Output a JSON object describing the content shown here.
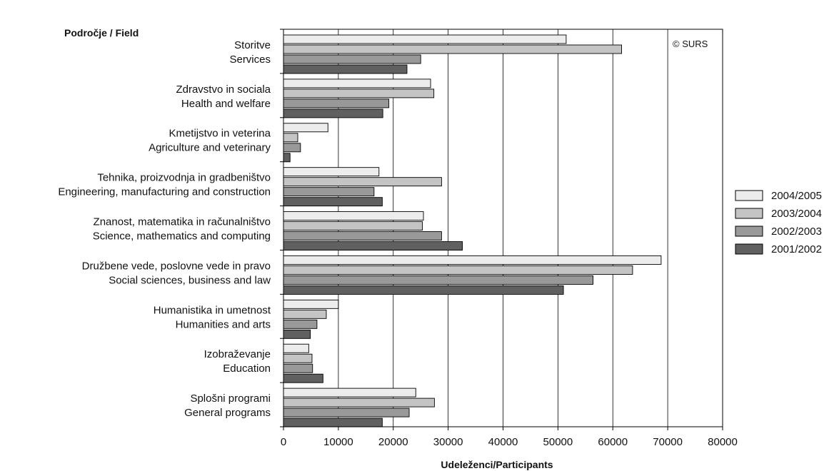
{
  "chart_data": {
    "type": "bar",
    "orientation": "horizontal",
    "y_axis_title": "Področje / Field",
    "x_axis_title": "Udeleženci/Participants",
    "copyright": "© SURS",
    "xlim": [
      0,
      80000
    ],
    "x_ticks": [
      0,
      10000,
      20000,
      30000,
      40000,
      50000,
      60000,
      70000,
      80000
    ],
    "grid": "vertical",
    "legend_position": "right",
    "categories": [
      [
        "Storitve",
        "Services"
      ],
      [
        "Zdravstvo in sociala",
        "Health and welfare"
      ],
      [
        "Kmetijstvo in veterina",
        "Agriculture and veterinary"
      ],
      [
        "Tehnika, proizvodnja in gradbeništvo",
        "Engineering, manufacturing and construction"
      ],
      [
        "Znanost, matematika in računalništvo",
        "Science, mathematics and computing"
      ],
      [
        "Družbene vede, poslovne vede in pravo",
        "Social sciences, business and law"
      ],
      [
        "Humanistika in umetnost",
        "Humanities and arts"
      ],
      [
        "Izobraževanje",
        "Education"
      ],
      [
        "Splošni programi",
        "General programs"
      ]
    ],
    "series": [
      {
        "name": "2004/2005",
        "color": "#ececec",
        "values": [
          51500,
          26800,
          8100,
          17400,
          25500,
          68800,
          10000,
          4600,
          24100
        ]
      },
      {
        "name": "2003/2004",
        "color": "#c4c4c4",
        "values": [
          61600,
          27400,
          2600,
          28800,
          25300,
          63600,
          7800,
          5200,
          27500
        ]
      },
      {
        "name": "2002/2003",
        "color": "#999999",
        "values": [
          25000,
          19200,
          3100,
          16500,
          28800,
          56400,
          6100,
          5300,
          22900
        ]
      },
      {
        "name": "2001/2002",
        "color": "#606060",
        "values": [
          22500,
          18100,
          1200,
          18000,
          32600,
          51000,
          4900,
          7200,
          18000
        ]
      }
    ]
  }
}
